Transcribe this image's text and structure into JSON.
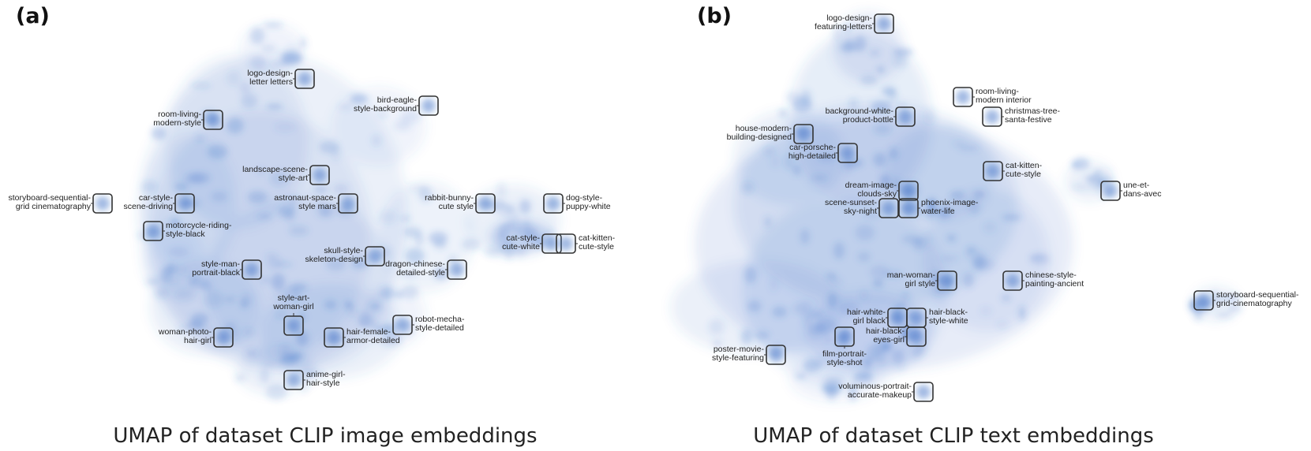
{
  "panels": [
    {
      "letter": "(a)",
      "caption": "UMAP of dataset CLIP image embeddings",
      "clusters": [
        {
          "lines": [
            "logo-design-",
            "letter letters"
          ]
        },
        {
          "lines": [
            "bird-eagle-",
            "style-background"
          ]
        },
        {
          "lines": [
            "room-living-",
            "modern-style"
          ]
        },
        {
          "lines": [
            "landscape-scene-",
            "style-art"
          ]
        },
        {
          "lines": [
            "storyboard-sequential-",
            "grid cinematography"
          ]
        },
        {
          "lines": [
            "car-style-",
            "scene-driving"
          ]
        },
        {
          "lines": [
            "astronaut-space-",
            "style mars"
          ]
        },
        {
          "lines": [
            "rabbit-bunny-",
            "cute style"
          ]
        },
        {
          "lines": [
            "dog-style-",
            "puppy-white"
          ]
        },
        {
          "lines": [
            "motorcycle-riding-",
            "style-black"
          ]
        },
        {
          "lines": [
            "cat-style-",
            "cute-white"
          ]
        },
        {
          "lines": [
            "cat-kitten-",
            "cute-style"
          ]
        },
        {
          "lines": [
            "skull-style-",
            "skeleton-design"
          ]
        },
        {
          "lines": [
            "style-man-",
            "portrait-black"
          ]
        },
        {
          "lines": [
            "dragon-chinese-",
            "detailed-style"
          ]
        },
        {
          "lines": [
            "style-art-",
            "woman-girl"
          ]
        },
        {
          "lines": [
            "robot-mecha-",
            "style-detailed"
          ]
        },
        {
          "lines": [
            "woman-photo-",
            "hair-girl"
          ]
        },
        {
          "lines": [
            "hair-female-",
            "armor-detailed"
          ]
        },
        {
          "lines": [
            "anime-girl-",
            "hair-style"
          ]
        }
      ]
    },
    {
      "letter": "(b)",
      "caption": "UMAP of dataset CLIP text embeddings",
      "clusters": [
        {
          "lines": [
            "logo-design-",
            "featuring-letters"
          ]
        },
        {
          "lines": [
            "room-living-",
            "modern interior"
          ]
        },
        {
          "lines": [
            "background-white-",
            "product-bottle"
          ]
        },
        {
          "lines": [
            "christmas-tree-",
            "santa-festive"
          ]
        },
        {
          "lines": [
            "house-modern-",
            "building-designed"
          ]
        },
        {
          "lines": [
            "car-porsche-",
            "high-detailed"
          ]
        },
        {
          "lines": [
            "cat-kitten-",
            "cute-style"
          ]
        },
        {
          "lines": [
            "dream-image-",
            "clouds-sky"
          ]
        },
        {
          "lines": [
            "une-et-",
            "dans-avec"
          ]
        },
        {
          "lines": [
            "scene-sunset-",
            "sky-night"
          ]
        },
        {
          "lines": [
            "phoenix-image-",
            "water-life"
          ]
        },
        {
          "lines": [
            "man-woman-",
            "girl style"
          ]
        },
        {
          "lines": [
            "chinese-style-",
            "painting-ancient"
          ]
        },
        {
          "lines": [
            "storyboard-sequential-",
            "grid-cinematography"
          ]
        },
        {
          "lines": [
            "hair-white-",
            "girl black"
          ]
        },
        {
          "lines": [
            "hair-black-",
            "style-white"
          ]
        },
        {
          "lines": [
            "hair-black-",
            "eyes-girl"
          ]
        },
        {
          "lines": [
            "poster-movie-",
            "style-featuring"
          ]
        },
        {
          "lines": [
            "film-portrait-",
            "style-shot"
          ]
        },
        {
          "lines": [
            "voluminous-portrait-",
            "accurate-makeup"
          ]
        }
      ]
    }
  ],
  "colors": {
    "density_fill": "#3a6fc7",
    "density_core": "#1f5fbf",
    "box_stroke": "#333333",
    "text": "#222222"
  }
}
